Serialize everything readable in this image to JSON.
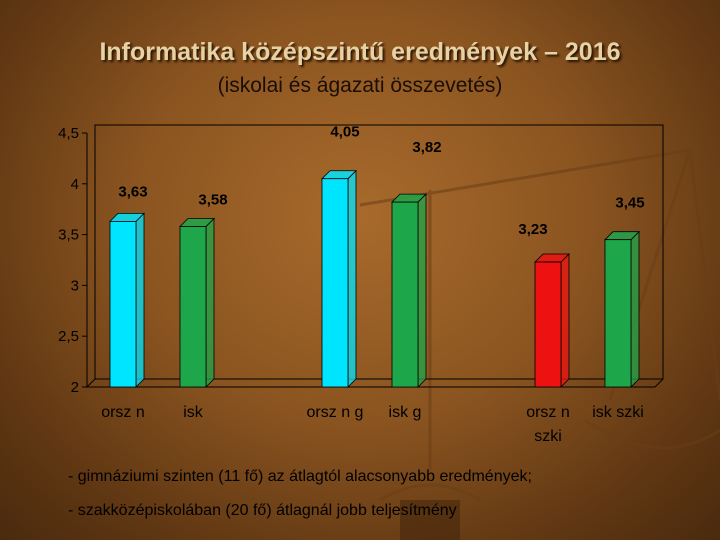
{
  "slide": {
    "title": "Informatika középszintű eredmények – 2016",
    "subtitle": "(iskolai és ágazati összevetés)",
    "notes": [
      "- gimnáziumi szinten (11 fő) az átlagtól alacsonyabb eredmények;",
      "- szakközépiskolában (20 fő) átlagnál jobb teljesítmény"
    ]
  },
  "chart_data": {
    "type": "bar",
    "ylim": [
      2,
      4.5
    ],
    "yticks": [
      "2",
      "2,5",
      "3",
      "3,5",
      "4",
      "4,5"
    ],
    "categories": [
      "orsz n",
      "isk",
      "orsz n g",
      "isk g",
      "orsz n szki",
      "isk szki"
    ],
    "category_labels": [
      {
        "text": [
          "orsz n"
        ]
      },
      {
        "text": [
          "isk"
        ]
      },
      {
        "text": [
          "orsz n g"
        ]
      },
      {
        "text": [
          "isk g"
        ]
      },
      {
        "text": [
          "orsz n",
          "szki"
        ]
      },
      {
        "text": [
          "isk szki"
        ]
      }
    ],
    "values": [
      3.63,
      3.58,
      4.05,
      3.82,
      3.23,
      3.45
    ],
    "value_labels": [
      "3,63",
      "3,58",
      "4,05",
      "3,82",
      "3,23",
      "3,45"
    ],
    "colors": [
      "#00e5ff",
      "#1ea64a",
      "#00e5ff",
      "#1ea64a",
      "#ee1111",
      "#1ea64a"
    ],
    "grid": false,
    "legend": "none"
  }
}
